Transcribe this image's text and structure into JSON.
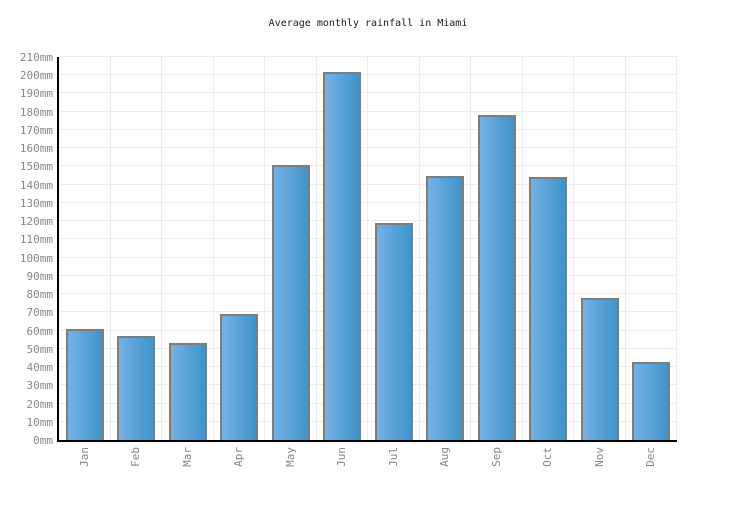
{
  "title": "Average monthly rainfall in Miami",
  "chart_data": {
    "type": "bar",
    "title": "Average monthly rainfall in Miami",
    "categories": [
      "Jan",
      "Feb",
      "Mar",
      "Apr",
      "May",
      "Jun",
      "Jul",
      "Aug",
      "Sep",
      "Oct",
      "Nov",
      "Dec"
    ],
    "values": [
      61,
      57,
      53,
      69,
      151,
      202,
      119,
      145,
      178,
      144,
      78,
      43
    ],
    "unit": "mm",
    "xlabel": "",
    "ylabel": "",
    "ylim": [
      0,
      210
    ],
    "y_tick_step": 10,
    "y_tick_labels": [
      "0mm",
      "10mm",
      "20mm",
      "30mm",
      "40mm",
      "50mm",
      "60mm",
      "70mm",
      "80mm",
      "90mm",
      "100mm",
      "110mm",
      "120mm",
      "130mm",
      "140mm",
      "150mm",
      "160mm",
      "170mm",
      "180mm",
      "190mm",
      "200mm",
      "210mm"
    ],
    "grid": "both",
    "legend": "none",
    "colors": {
      "bar_gradient_left": "#74b2e6",
      "bar_gradient_right": "#3f93ca",
      "bar_border": "#7d7d7d",
      "grid_line": "#ececec",
      "axis_line": "#000000",
      "tick_label": "#878787",
      "title_text": "#1a1a1a",
      "background": "#ffffff"
    }
  }
}
